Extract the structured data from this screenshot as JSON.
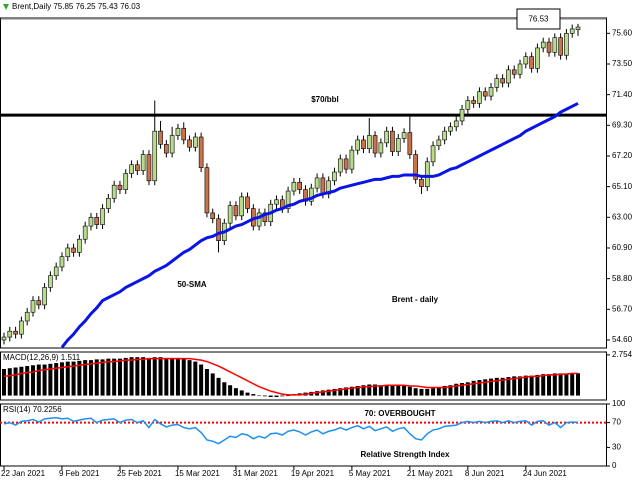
{
  "chart_data": [
    {
      "type": "candlestick",
      "title": "Brent,Daily 75.85 76.25 75.43 76.03",
      "categories": [
        "22 Jan 2021",
        null,
        null,
        null,
        null,
        null,
        null,
        null,
        null,
        null,
        "9 Feb 2021",
        null,
        null,
        null,
        null,
        null,
        null,
        null,
        null,
        null,
        "25 Feb 2021",
        null,
        null,
        null,
        null,
        null,
        null,
        null,
        null,
        null,
        "15 Mar 2021",
        null,
        null,
        null,
        null,
        null,
        null,
        null,
        null,
        null,
        "31 Mar 2021",
        null,
        null,
        null,
        null,
        null,
        null,
        null,
        null,
        null,
        "19 Apr 2021",
        null,
        null,
        null,
        null,
        null,
        null,
        null,
        null,
        null,
        "5 May 2021",
        null,
        null,
        null,
        null,
        null,
        null,
        null,
        null,
        null,
        "21 May 2021",
        null,
        null,
        null,
        null,
        null,
        null,
        null,
        null,
        null,
        "8 Jun 2021",
        null,
        null,
        null,
        null,
        null,
        null,
        null,
        null,
        null,
        "24 Jun 2021",
        null,
        null,
        null,
        null,
        null,
        null,
        null,
        null,
        null
      ],
      "open": [
        54.6,
        54.8,
        55.2,
        55.0,
        55.9,
        56.5,
        57.3,
        57.0,
        58.2,
        59.0,
        59.6,
        60.3,
        60.9,
        60.6,
        61.5,
        62.4,
        63.0,
        62.5,
        63.6,
        64.3,
        65.2,
        64.9,
        66.0,
        66.6,
        66.2,
        67.3,
        65.5,
        68.9,
        68.0,
        67.4,
        68.6,
        69.1,
        68.3,
        67.8,
        68.5,
        66.4,
        63.3,
        62.9,
        61.4,
        62.6,
        63.8,
        63.1,
        64.4,
        63.6,
        62.4,
        63.3,
        62.7,
        63.9,
        64.2,
        63.6,
        64.8,
        65.4,
        64.9,
        64.1,
        65.0,
        65.7,
        64.6,
        65.5,
        66.1,
        67.0,
        66.3,
        67.6,
        68.3,
        67.7,
        68.6,
        67.4,
        68.1,
        68.9,
        67.5,
        68.4,
        68.8,
        67.3,
        65.6,
        65.1,
        66.8,
        67.9,
        68.3,
        68.9,
        69.2,
        69.6,
        70.4,
        71.0,
        70.8,
        71.6,
        71.3,
        71.9,
        72.5,
        72.2,
        73.1,
        72.8,
        73.5,
        74.0,
        73.2,
        74.6,
        75.0,
        74.3,
        75.3,
        74.1,
        75.6,
        75.85
      ],
      "high": [
        55.1,
        55.5,
        55.5,
        56.2,
        56.8,
        57.6,
        57.6,
        58.5,
        59.3,
        59.9,
        60.6,
        61.2,
        61.2,
        61.8,
        62.7,
        63.3,
        63.3,
        63.9,
        64.6,
        65.5,
        65.5,
        66.3,
        66.9,
        66.9,
        67.6,
        67.6,
        71.0,
        69.6,
        68.3,
        69.2,
        69.4,
        69.5,
        68.6,
        68.8,
        68.8,
        66.7,
        63.6,
        63.2,
        62.9,
        64.1,
        64.1,
        64.7,
        64.7,
        63.9,
        63.6,
        63.6,
        64.2,
        64.5,
        64.5,
        65.1,
        65.7,
        65.7,
        65.2,
        65.3,
        66.0,
        66.0,
        65.8,
        66.4,
        67.3,
        67.3,
        67.9,
        68.6,
        68.6,
        69.8,
        68.9,
        68.4,
        69.2,
        69.2,
        68.7,
        69.1,
        69.9,
        67.6,
        65.9,
        67.1,
        68.2,
        68.6,
        69.2,
        69.5,
        69.9,
        70.7,
        71.3,
        71.3,
        71.9,
        71.9,
        72.2,
        72.8,
        72.8,
        73.4,
        73.4,
        73.8,
        74.3,
        74.3,
        74.9,
        75.3,
        75.3,
        75.6,
        75.6,
        75.9,
        76.2,
        76.25
      ],
      "low": [
        54.3,
        54.5,
        54.7,
        54.7,
        55.6,
        56.2,
        56.7,
        56.7,
        57.9,
        58.7,
        59.3,
        60.0,
        60.3,
        60.3,
        61.2,
        62.1,
        62.2,
        62.2,
        63.3,
        64.0,
        64.6,
        64.6,
        65.7,
        65.9,
        65.9,
        65.2,
        65.2,
        67.7,
        67.1,
        67.1,
        68.3,
        68.0,
        67.5,
        67.5,
        66.1,
        63.0,
        62.6,
        60.6,
        61.1,
        62.3,
        62.8,
        62.8,
        63.3,
        62.1,
        62.1,
        62.4,
        62.4,
        63.6,
        63.3,
        63.3,
        64.5,
        64.6,
        63.8,
        63.8,
        64.7,
        64.3,
        64.3,
        65.2,
        65.8,
        66.0,
        66.0,
        67.3,
        67.4,
        67.4,
        67.1,
        67.1,
        67.8,
        67.2,
        67.2,
        68.1,
        67.0,
        65.3,
        64.6,
        64.8,
        66.5,
        67.6,
        68.0,
        68.6,
        68.9,
        69.3,
        70.1,
        70.5,
        70.5,
        71.0,
        71.0,
        71.6,
        71.9,
        71.9,
        72.5,
        72.5,
        73.2,
        72.9,
        72.9,
        74.3,
        74.0,
        74.0,
        73.8,
        73.8,
        75.3,
        75.43
      ],
      "close": [
        54.8,
        55.2,
        55.0,
        55.9,
        56.5,
        57.3,
        57.0,
        58.2,
        59.0,
        59.6,
        60.3,
        60.9,
        60.6,
        61.5,
        62.4,
        63.0,
        62.5,
        63.6,
        64.3,
        65.2,
        64.9,
        66.0,
        66.6,
        66.2,
        67.3,
        65.5,
        68.9,
        68.0,
        67.4,
        68.6,
        69.1,
        68.3,
        67.8,
        68.5,
        66.4,
        63.3,
        62.9,
        61.4,
        62.6,
        63.8,
        63.1,
        64.4,
        63.6,
        62.4,
        63.3,
        62.7,
        63.9,
        64.2,
        63.6,
        64.8,
        65.4,
        64.9,
        64.1,
        65.0,
        65.7,
        64.6,
        65.5,
        66.1,
        67.0,
        66.3,
        67.6,
        68.3,
        67.7,
        68.6,
        67.4,
        68.1,
        68.9,
        67.5,
        68.4,
        68.8,
        67.3,
        65.6,
        65.1,
        66.8,
        67.9,
        68.3,
        68.9,
        69.2,
        69.6,
        70.4,
        71.0,
        70.8,
        71.6,
        71.3,
        71.9,
        72.5,
        72.2,
        73.1,
        72.8,
        73.5,
        74.0,
        73.2,
        74.6,
        75.0,
        74.3,
        75.3,
        74.1,
        75.6,
        75.9,
        76.03
      ],
      "up_color": "#b9dc8c",
      "down_color": "#c8744a",
      "series": [
        {
          "name": "50-SMA",
          "color": "#0a14e6",
          "values": [
            null,
            null,
            null,
            null,
            null,
            null,
            null,
            null,
            null,
            null,
            54.1,
            54.6,
            55.0,
            55.5,
            55.9,
            56.4,
            56.8,
            57.3,
            57.5,
            57.7,
            57.9,
            58.2,
            58.4,
            58.6,
            58.8,
            59.0,
            59.3,
            59.5,
            59.7,
            60.0,
            60.3,
            60.6,
            60.8,
            61.1,
            61.4,
            61.6,
            61.7,
            61.9,
            62.0,
            62.2,
            62.4,
            62.5,
            62.7,
            62.9,
            63.0,
            63.2,
            63.3,
            63.5,
            63.6,
            63.8,
            63.9,
            64.1,
            64.2,
            64.3,
            64.5,
            64.6,
            64.7,
            64.8,
            65.0,
            65.1,
            65.2,
            65.3,
            65.4,
            65.5,
            65.6,
            65.6,
            65.7,
            65.8,
            65.8,
            65.9,
            65.9,
            65.9,
            65.8,
            65.8,
            65.8,
            65.9,
            66.1,
            66.3,
            66.4,
            66.6,
            66.8,
            67.0,
            67.2,
            67.4,
            67.6,
            67.8,
            68.0,
            68.2,
            68.4,
            68.6,
            68.9,
            69.1,
            69.3,
            69.5,
            69.7,
            69.9,
            70.2,
            70.4,
            70.6,
            70.8
          ]
        }
      ],
      "hlines": [
        {
          "value": 70,
          "label": "$70/bbl",
          "color": "#000000"
        }
      ],
      "last_price": 76.53,
      "watermark": "Brent - daily",
      "ylim": [
        54.05,
        76.65
      ],
      "yticks": [
        {
          "value": 54.6,
          "label": "54.60"
        },
        {
          "value": 56.7,
          "label": "56.70"
        },
        {
          "value": 58.8,
          "label": "58.80"
        },
        {
          "value": 60.9,
          "label": "60.90"
        },
        {
          "value": 63,
          "label": "63.00"
        },
        {
          "value": 65.1,
          "label": "65.10"
        },
        {
          "value": 67.2,
          "label": "67.20"
        },
        {
          "value": 69.3,
          "label": "69.30"
        },
        {
          "value": 71.4,
          "label": "71.40"
        },
        {
          "value": 73.5,
          "label": "73.50"
        },
        {
          "value": 75.6,
          "label": "75.60"
        }
      ]
    },
    {
      "type": "bar",
      "title": "MACD(12,26,9) 1.511",
      "values": [
        1.8,
        1.85,
        1.9,
        1.95,
        2.0,
        2.05,
        2.1,
        2.1,
        2.15,
        2.2,
        2.25,
        2.3,
        2.3,
        2.35,
        2.4,
        2.4,
        2.45,
        2.45,
        2.5,
        2.5,
        2.5,
        2.55,
        2.6,
        2.6,
        2.6,
        2.55,
        2.6,
        2.6,
        2.55,
        2.55,
        2.55,
        2.5,
        2.4,
        2.3,
        2.1,
        1.8,
        1.5,
        1.2,
        0.9,
        0.7,
        0.5,
        0.35,
        0.2,
        0.1,
        0.0,
        -0.05,
        -0.1,
        -0.1,
        -0.05,
        0.0,
        0.1,
        0.15,
        0.2,
        0.25,
        0.3,
        0.35,
        0.4,
        0.45,
        0.5,
        0.55,
        0.6,
        0.65,
        0.7,
        0.75,
        0.75,
        0.7,
        0.7,
        0.7,
        0.65,
        0.65,
        0.6,
        0.5,
        0.45,
        0.45,
        0.5,
        0.55,
        0.65,
        0.7,
        0.8,
        0.85,
        0.9,
        1.0,
        1.05,
        1.1,
        1.15,
        1.2,
        1.2,
        1.25,
        1.3,
        1.3,
        1.35,
        1.35,
        1.4,
        1.45,
        1.45,
        1.5,
        1.5,
        1.5,
        1.5,
        1.511
      ],
      "color": "#000000",
      "line_values": [
        1.3,
        1.35,
        1.4,
        1.5,
        1.55,
        1.6,
        1.7,
        1.75,
        1.8,
        1.85,
        1.9,
        1.95,
        2.0,
        2.05,
        2.1,
        2.15,
        2.2,
        2.25,
        2.3,
        2.3,
        2.35,
        2.4,
        2.4,
        2.45,
        2.45,
        2.5,
        2.5,
        2.5,
        2.5,
        2.5,
        2.5,
        2.5,
        2.5,
        2.45,
        2.4,
        2.3,
        2.15,
        2.0,
        1.8,
        1.6,
        1.4,
        1.2,
        1.0,
        0.8,
        0.6,
        0.45,
        0.3,
        0.2,
        0.1,
        0.05,
        0.05,
        0.05,
        0.1,
        0.15,
        0.2,
        0.25,
        0.3,
        0.35,
        0.4,
        0.45,
        0.5,
        0.55,
        0.6,
        0.6,
        0.65,
        0.65,
        0.7,
        0.7,
        0.7,
        0.7,
        0.65,
        0.65,
        0.6,
        0.55,
        0.55,
        0.55,
        0.55,
        0.6,
        0.65,
        0.7,
        0.75,
        0.8,
        0.85,
        0.9,
        0.95,
        1.0,
        1.05,
        1.1,
        1.15,
        1.2,
        1.25,
        1.3,
        1.3,
        1.35,
        1.4,
        1.4,
        1.45,
        1.45,
        1.5,
        1.5
      ],
      "line_color": "#ff0000",
      "ylim": [
        -0.3,
        2.95
      ],
      "yticks": [
        2.754
      ]
    },
    {
      "type": "line",
      "title": "RSI(14) 70.2256",
      "values": [
        68,
        70,
        66,
        72,
        73,
        75,
        71,
        76,
        77,
        78,
        76,
        77,
        72,
        74,
        76,
        77,
        70,
        74,
        75,
        76,
        70,
        74,
        75,
        70,
        73,
        62,
        75,
        68,
        63,
        66,
        67,
        62,
        60,
        62,
        54,
        42,
        40,
        36,
        42,
        48,
        46,
        52,
        50,
        44,
        48,
        45,
        52,
        53,
        50,
        56,
        58,
        55,
        50,
        55,
        58,
        52,
        56,
        58,
        62,
        58,
        62,
        65,
        60,
        64,
        57,
        60,
        63,
        56,
        60,
        62,
        52,
        44,
        42,
        52,
        58,
        60,
        64,
        65,
        66,
        70,
        72,
        70,
        72,
        70,
        72,
        73,
        70,
        73,
        70,
        72,
        73,
        66,
        72,
        73,
        66,
        70,
        62,
        70,
        71,
        70.2256
      ],
      "color": "#1e8ff0",
      "hlines": [
        {
          "value": 70,
          "label": "70: OVERBOUGHT",
          "color": "#ff0000"
        }
      ],
      "annotation": "Relative Strength Index",
      "ylim": [
        0,
        100
      ],
      "yticks": [
        0,
        30,
        70,
        100
      ]
    }
  ]
}
